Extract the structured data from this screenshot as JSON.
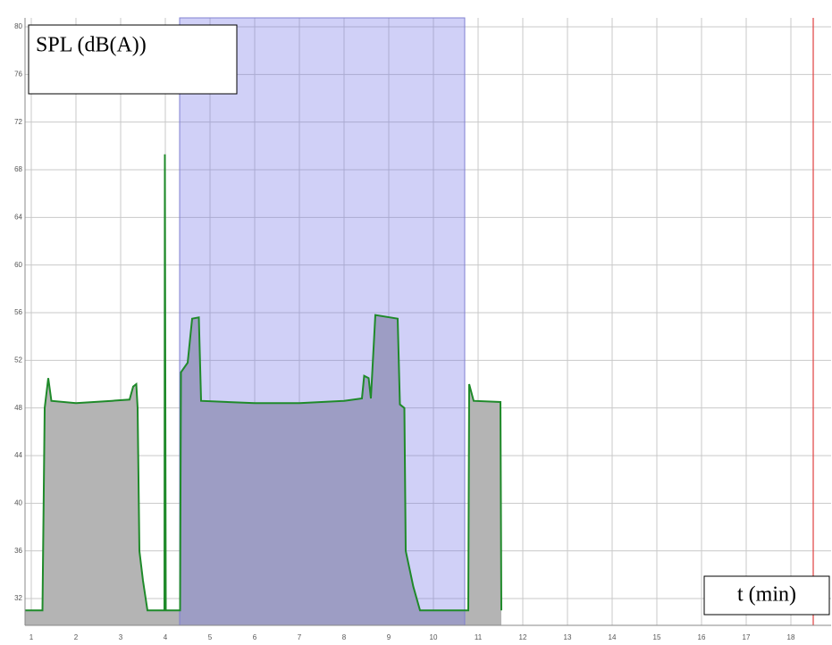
{
  "chart_data": {
    "type": "area",
    "y_label": "SPL (dB(A))",
    "x_label": "t (min)",
    "x": [
      0.86,
      1.25,
      1.3,
      1.38,
      1.45,
      2,
      2.8,
      3.2,
      3.28,
      3.35,
      3.38,
      3.42,
      3.5,
      3.6,
      3.98,
      3.99,
      4.01,
      4.33,
      4.35,
      4.5,
      4.6,
      4.75,
      4.8,
      6,
      7,
      8,
      8.4,
      8.45,
      8.55,
      8.6,
      8.7,
      9.2,
      9.25,
      9.35,
      9.38,
      9.55,
      9.7,
      10.78,
      10.8,
      10.9,
      11.5,
      11.52
    ],
    "series": [
      {
        "color": "#1f8a2a",
        "fill": "#b4b4b4",
        "values": [
          31,
          31,
          48,
          50.5,
          48.6,
          48.4,
          48.6,
          48.7,
          49.8,
          50,
          48,
          36,
          33.5,
          31,
          31,
          69.3,
          31,
          31,
          51,
          51.8,
          55.5,
          55.6,
          48.6,
          48.4,
          48.4,
          48.6,
          48.8,
          50.7,
          50.5,
          48.8,
          55.8,
          55.5,
          48.3,
          48,
          36,
          33,
          31,
          31,
          50,
          48.6,
          48.5,
          31
        ]
      }
    ],
    "highlight": [
      4.32,
      10.7
    ],
    "marker_line": 18.5,
    "xlim": [
      0.86,
      18.9
    ],
    "ylim": [
      29.75,
      80.75
    ],
    "xticks": [
      1,
      2,
      3,
      4,
      5,
      6,
      7,
      8,
      9,
      10,
      11,
      12,
      13,
      14,
      15,
      16,
      17,
      18
    ],
    "yticks": [
      32,
      36,
      40,
      44,
      48,
      52,
      56,
      60,
      64,
      68,
      72,
      76,
      80
    ],
    "grid": true
  }
}
